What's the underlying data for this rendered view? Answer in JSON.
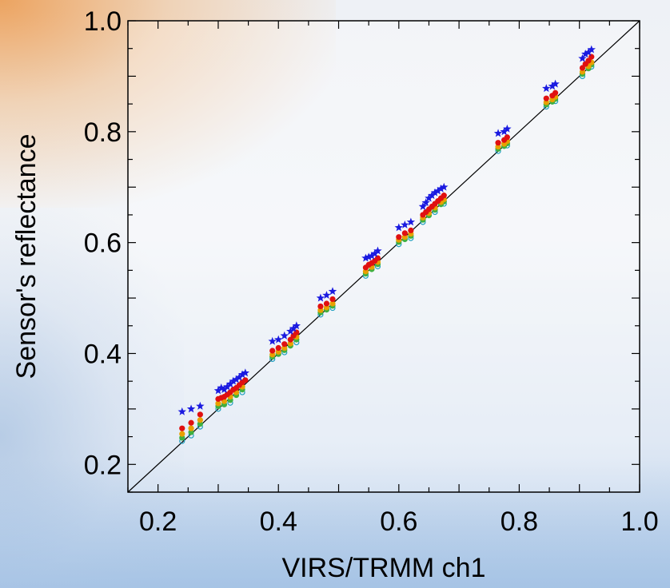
{
  "chart_data": {
    "type": "scatter",
    "title": "",
    "xlabel": "VIRS/TRMM ch1",
    "ylabel": "Sensor's reflectance",
    "xlim": [
      0.15,
      1.0
    ],
    "ylim": [
      0.15,
      1.0
    ],
    "xticks": [
      "0.2",
      "0.4",
      "0.6",
      "0.8",
      "1.0"
    ],
    "yticks": [
      "0.2",
      "0.4",
      "0.6",
      "0.8",
      "1.0"
    ],
    "grid": false,
    "reference_line": "1:1",
    "colors": {
      "blue_stars": "#1a1ae0",
      "red_dots": "#e01010",
      "orange_dots": "#e8a000",
      "green_dots": "#40b040",
      "cyan_dots": "#20a0c0",
      "frame": "#000000"
    },
    "series": [
      {
        "marker": "star",
        "color": "#1a1ae0",
        "points": [
          [
            0.24,
            0.295
          ],
          [
            0.255,
            0.3
          ],
          [
            0.27,
            0.305
          ],
          [
            0.3,
            0.333
          ],
          [
            0.305,
            0.338
          ],
          [
            0.31,
            0.335
          ],
          [
            0.315,
            0.34
          ],
          [
            0.32,
            0.345
          ],
          [
            0.325,
            0.35
          ],
          [
            0.33,
            0.353
          ],
          [
            0.335,
            0.357
          ],
          [
            0.34,
            0.362
          ],
          [
            0.345,
            0.365
          ],
          [
            0.39,
            0.422
          ],
          [
            0.4,
            0.425
          ],
          [
            0.41,
            0.432
          ],
          [
            0.42,
            0.44
          ],
          [
            0.425,
            0.445
          ],
          [
            0.43,
            0.45
          ],
          [
            0.47,
            0.5
          ],
          [
            0.48,
            0.505
          ],
          [
            0.49,
            0.512
          ],
          [
            0.545,
            0.572
          ],
          [
            0.55,
            0.574
          ],
          [
            0.555,
            0.576
          ],
          [
            0.56,
            0.58
          ],
          [
            0.565,
            0.585
          ],
          [
            0.6,
            0.627
          ],
          [
            0.61,
            0.632
          ],
          [
            0.62,
            0.637
          ],
          [
            0.64,
            0.665
          ],
          [
            0.645,
            0.672
          ],
          [
            0.65,
            0.68
          ],
          [
            0.655,
            0.685
          ],
          [
            0.66,
            0.69
          ],
          [
            0.665,
            0.693
          ],
          [
            0.67,
            0.697
          ],
          [
            0.675,
            0.7
          ],
          [
            0.765,
            0.797
          ],
          [
            0.775,
            0.8
          ],
          [
            0.78,
            0.805
          ],
          [
            0.845,
            0.878
          ],
          [
            0.855,
            0.882
          ],
          [
            0.86,
            0.886
          ],
          [
            0.905,
            0.932
          ],
          [
            0.91,
            0.94
          ],
          [
            0.915,
            0.943
          ],
          [
            0.92,
            0.948
          ]
        ]
      },
      {
        "marker": "circle",
        "color": "#e01010",
        "points": [
          [
            0.24,
            0.265
          ],
          [
            0.255,
            0.275
          ],
          [
            0.27,
            0.29
          ],
          [
            0.3,
            0.318
          ],
          [
            0.305,
            0.32
          ],
          [
            0.31,
            0.322
          ],
          [
            0.315,
            0.326
          ],
          [
            0.32,
            0.33
          ],
          [
            0.325,
            0.335
          ],
          [
            0.33,
            0.338
          ],
          [
            0.335,
            0.343
          ],
          [
            0.34,
            0.348
          ],
          [
            0.345,
            0.352
          ],
          [
            0.39,
            0.405
          ],
          [
            0.4,
            0.41
          ],
          [
            0.41,
            0.417
          ],
          [
            0.42,
            0.425
          ],
          [
            0.425,
            0.432
          ],
          [
            0.43,
            0.438
          ],
          [
            0.47,
            0.485
          ],
          [
            0.48,
            0.49
          ],
          [
            0.49,
            0.498
          ],
          [
            0.545,
            0.555
          ],
          [
            0.55,
            0.56
          ],
          [
            0.555,
            0.563
          ],
          [
            0.56,
            0.567
          ],
          [
            0.565,
            0.572
          ],
          [
            0.6,
            0.61
          ],
          [
            0.61,
            0.617
          ],
          [
            0.62,
            0.622
          ],
          [
            0.64,
            0.65
          ],
          [
            0.645,
            0.655
          ],
          [
            0.65,
            0.66
          ],
          [
            0.655,
            0.665
          ],
          [
            0.66,
            0.67
          ],
          [
            0.665,
            0.675
          ],
          [
            0.67,
            0.68
          ],
          [
            0.675,
            0.685
          ],
          [
            0.765,
            0.78
          ],
          [
            0.775,
            0.785
          ],
          [
            0.78,
            0.79
          ],
          [
            0.845,
            0.86
          ],
          [
            0.855,
            0.865
          ],
          [
            0.86,
            0.87
          ],
          [
            0.905,
            0.915
          ],
          [
            0.91,
            0.922
          ],
          [
            0.915,
            0.928
          ],
          [
            0.92,
            0.935
          ]
        ]
      },
      {
        "marker": "circle",
        "color": "#e8a000",
        "points": [
          [
            0.24,
            0.255
          ],
          [
            0.255,
            0.265
          ],
          [
            0.27,
            0.28
          ],
          [
            0.3,
            0.31
          ],
          [
            0.31,
            0.314
          ],
          [
            0.32,
            0.322
          ],
          [
            0.33,
            0.33
          ],
          [
            0.34,
            0.34
          ],
          [
            0.39,
            0.398
          ],
          [
            0.4,
            0.403
          ],
          [
            0.41,
            0.41
          ],
          [
            0.42,
            0.418
          ],
          [
            0.43,
            0.43
          ],
          [
            0.47,
            0.478
          ],
          [
            0.48,
            0.483
          ],
          [
            0.49,
            0.49
          ],
          [
            0.545,
            0.548
          ],
          [
            0.555,
            0.556
          ],
          [
            0.565,
            0.565
          ],
          [
            0.6,
            0.605
          ],
          [
            0.61,
            0.61
          ],
          [
            0.62,
            0.616
          ],
          [
            0.64,
            0.645
          ],
          [
            0.65,
            0.653
          ],
          [
            0.66,
            0.663
          ],
          [
            0.67,
            0.673
          ],
          [
            0.675,
            0.678
          ],
          [
            0.765,
            0.773
          ],
          [
            0.775,
            0.778
          ],
          [
            0.78,
            0.783
          ],
          [
            0.845,
            0.853
          ],
          [
            0.855,
            0.858
          ],
          [
            0.86,
            0.863
          ],
          [
            0.905,
            0.908
          ],
          [
            0.915,
            0.918
          ],
          [
            0.92,
            0.925
          ]
        ]
      },
      {
        "marker": "circle",
        "color": "#40b040",
        "points": [
          [
            0.24,
            0.248
          ],
          [
            0.255,
            0.258
          ],
          [
            0.27,
            0.273
          ],
          [
            0.3,
            0.305
          ],
          [
            0.31,
            0.308
          ],
          [
            0.32,
            0.316
          ],
          [
            0.33,
            0.325
          ],
          [
            0.34,
            0.335
          ],
          [
            0.39,
            0.394
          ],
          [
            0.4,
            0.399
          ],
          [
            0.41,
            0.406
          ],
          [
            0.42,
            0.414
          ],
          [
            0.43,
            0.425
          ],
          [
            0.47,
            0.474
          ],
          [
            0.48,
            0.479
          ],
          [
            0.49,
            0.486
          ],
          [
            0.545,
            0.544
          ],
          [
            0.555,
            0.552
          ],
          [
            0.565,
            0.561
          ],
          [
            0.6,
            0.601
          ],
          [
            0.61,
            0.606
          ],
          [
            0.62,
            0.612
          ],
          [
            0.64,
            0.641
          ],
          [
            0.65,
            0.649
          ],
          [
            0.66,
            0.659
          ],
          [
            0.67,
            0.669
          ],
          [
            0.675,
            0.674
          ],
          [
            0.765,
            0.769
          ],
          [
            0.775,
            0.774
          ],
          [
            0.78,
            0.779
          ],
          [
            0.845,
            0.849
          ],
          [
            0.855,
            0.854
          ],
          [
            0.86,
            0.859
          ],
          [
            0.905,
            0.904
          ],
          [
            0.915,
            0.914
          ],
          [
            0.92,
            0.921
          ]
        ]
      },
      {
        "marker": "circle-open",
        "color": "#20a0c0",
        "points": [
          [
            0.24,
            0.242
          ],
          [
            0.255,
            0.252
          ],
          [
            0.27,
            0.268
          ],
          [
            0.3,
            0.3
          ],
          [
            0.32,
            0.311
          ],
          [
            0.34,
            0.33
          ],
          [
            0.39,
            0.39
          ],
          [
            0.41,
            0.402
          ],
          [
            0.43,
            0.42
          ],
          [
            0.47,
            0.47
          ],
          [
            0.49,
            0.482
          ],
          [
            0.545,
            0.54
          ],
          [
            0.565,
            0.557
          ],
          [
            0.6,
            0.597
          ],
          [
            0.62,
            0.608
          ],
          [
            0.64,
            0.637
          ],
          [
            0.66,
            0.655
          ],
          [
            0.675,
            0.67
          ],
          [
            0.765,
            0.765
          ],
          [
            0.78,
            0.775
          ],
          [
            0.845,
            0.845
          ],
          [
            0.86,
            0.855
          ],
          [
            0.905,
            0.9
          ],
          [
            0.92,
            0.917
          ]
        ]
      }
    ]
  }
}
